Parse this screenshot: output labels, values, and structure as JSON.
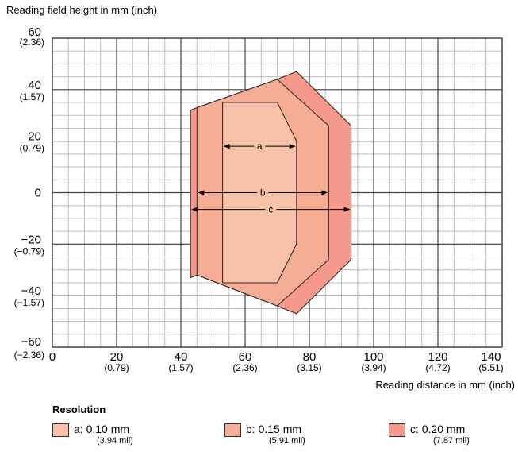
{
  "chart_data": {
    "type": "area",
    "ylabel": "Reading field height in mm (inch)",
    "xlabel": "Reading distance in mm (inch)",
    "xlim": [
      0,
      140
    ],
    "ylim": [
      -60,
      60
    ],
    "grid": true,
    "x_ticks": [
      {
        "value": 0,
        "label": "0",
        "sub": ""
      },
      {
        "value": 20,
        "label": "20",
        "sub": "(0.79)"
      },
      {
        "value": 40,
        "label": "40",
        "sub": "(1.57)"
      },
      {
        "value": 60,
        "label": "60",
        "sub": "(2.36)"
      },
      {
        "value": 80,
        "label": "80",
        "sub": "(3.15)"
      },
      {
        "value": 100,
        "label": "100",
        "sub": "(3.94)"
      },
      {
        "value": 120,
        "label": "120",
        "sub": "(4.72)"
      },
      {
        "value": 140,
        "label": "140",
        "sub": "(5.51)"
      }
    ],
    "y_ticks": [
      {
        "value": 60,
        "label": "60",
        "sub": "(2.36)"
      },
      {
        "value": 40,
        "label": "40",
        "sub": "(1.57)"
      },
      {
        "value": 20,
        "label": "20",
        "sub": "(0.79)"
      },
      {
        "value": 0,
        "label": "0",
        "sub": ""
      },
      {
        "value": -20,
        "label": "−20",
        "sub": "(−0.79)"
      },
      {
        "value": -40,
        "label": "−40",
        "sub": "(−1.57)"
      },
      {
        "value": -60,
        "label": "−60",
        "sub": "(−2.36)"
      }
    ],
    "series": [
      {
        "name": "c",
        "color": "#f4998b",
        "points": [
          [
            43,
            32
          ],
          [
            45,
            33
          ],
          [
            70,
            44
          ],
          [
            76,
            47
          ],
          [
            93,
            26
          ],
          [
            93,
            -26
          ],
          [
            76,
            -47
          ],
          [
            70,
            -44
          ],
          [
            45,
            -32
          ],
          [
            43,
            -33
          ]
        ],
        "range_x": [
          43,
          93
        ]
      },
      {
        "name": "b",
        "color": "#f6ad96",
        "points": [
          [
            45,
            33
          ],
          [
            70,
            44
          ],
          [
            86,
            26
          ],
          [
            86,
            -26
          ],
          [
            70,
            -44
          ],
          [
            45,
            -32
          ]
        ],
        "range_x": [
          45,
          86
        ]
      },
      {
        "name": "a",
        "color": "#f8c2a8",
        "points": [
          [
            53,
            35
          ],
          [
            70,
            35
          ],
          [
            76,
            20
          ],
          [
            76,
            -20
          ],
          [
            70,
            -35
          ],
          [
            53,
            -35
          ]
        ],
        "range_x": [
          53,
          76
        ]
      }
    ]
  },
  "legend": {
    "title": "Resolution",
    "items": [
      {
        "label": "a: 0.10 mm",
        "sub": "(3.94 mil)",
        "color": "#f8c2a8"
      },
      {
        "label": "b: 0.15 mm",
        "sub": "(5.91 mil)",
        "color": "#f6ad96"
      },
      {
        "label": "c: 0.20 mm",
        "sub": "(7.87 mil)",
        "color": "#f4998b"
      }
    ]
  }
}
